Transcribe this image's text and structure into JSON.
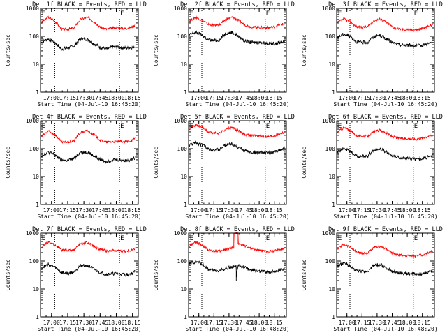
{
  "figure": {
    "background": "#ffffff",
    "axis_color": "#000000"
  },
  "chart_data": {
    "type": "line",
    "y_scale": "log",
    "ylim": [
      1,
      1000
    ],
    "yticks": [
      1,
      10,
      100,
      1000
    ],
    "ytick_labels": [
      "1",
      "10",
      "100",
      "1000"
    ],
    "xlim": [
      16.83,
      18.45
    ],
    "series_colors": {
      "events": "#000000",
      "lld": "#ff0000"
    },
    "panels": [
      {
        "title": "Det 1f BLACK = Events, RED = LLD",
        "ylabel": "Counts/sec",
        "xlabel": "Start Time (04-Jul-10 16:45:20)",
        "xticks": [
          17.0,
          17.25,
          17.5,
          17.75,
          18.0,
          18.25
        ],
        "xtick_labels": [
          "17:00",
          "17:15",
          "17:30",
          "17:45",
          "18:00",
          "18:15"
        ],
        "markers": [
          {
            "label": "E",
            "x": 16.84
          },
          {
            "label": "E",
            "x": 18.05
          }
        ],
        "dotted_lines": [
          17.05,
          18.05
        ],
        "xlim": [
          16.83,
          18.34
        ],
        "events": {
          "x": [
            16.84,
            16.95,
            17.05,
            17.15,
            17.25,
            17.35,
            17.45,
            17.55,
            17.65,
            17.75,
            17.85,
            17.95,
            18.05,
            18.15,
            18.25,
            18.3
          ],
          "y": [
            60,
            80,
            60,
            35,
            38,
            45,
            80,
            80,
            55,
            40,
            35,
            42,
            40,
            38,
            40,
            45
          ]
        },
        "lld": {
          "x": [
            16.84,
            16.95,
            17.05,
            17.15,
            17.25,
            17.35,
            17.45,
            17.55,
            17.65,
            17.75,
            17.85,
            17.95,
            18.05,
            18.15,
            18.25,
            18.3
          ],
          "y": [
            300,
            480,
            350,
            180,
            180,
            200,
            400,
            480,
            340,
            210,
            180,
            200,
            200,
            190,
            220,
            270
          ]
        }
      },
      {
        "title": "Det 2f BLACK = Events, RED = LLD",
        "ylabel": "Counts/sec",
        "xlabel": "Start Time (04-Jul-10 16:45:20)",
        "xticks": [
          17.0,
          17.25,
          17.5,
          17.75,
          18.0,
          18.25
        ],
        "xtick_labels": [
          "17:00",
          "17:15",
          "17:30",
          "17:45",
          "18:00",
          "18:15"
        ],
        "markers": [
          {
            "label": "E",
            "x": 16.84
          },
          {
            "label": "E",
            "x": 18.1
          }
        ],
        "dotted_lines": [
          17.05,
          18.1
        ],
        "xlim": [
          16.83,
          18.45
        ],
        "events": {
          "x": [
            16.84,
            16.95,
            17.05,
            17.15,
            17.25,
            17.35,
            17.45,
            17.55,
            17.65,
            17.75,
            17.85,
            17.95,
            18.05,
            18.15,
            18.25,
            18.35,
            18.42
          ],
          "y": [
            110,
            140,
            110,
            75,
            70,
            75,
            130,
            140,
            100,
            70,
            60,
            60,
            60,
            55,
            55,
            60,
            65
          ]
        },
        "lld": {
          "x": [
            16.84,
            16.95,
            17.05,
            17.15,
            17.25,
            17.35,
            17.45,
            17.55,
            17.65,
            17.75,
            17.85,
            17.95,
            18.05,
            18.15,
            18.25,
            18.35,
            18.42
          ],
          "y": [
            350,
            480,
            380,
            270,
            250,
            260,
            400,
            480,
            380,
            260,
            220,
            210,
            210,
            200,
            220,
            260,
            280
          ]
        }
      },
      {
        "title": "Det 3f BLACK = Events, RED = LLD",
        "ylabel": "Counts/sec",
        "xlabel": "Start Time (04-Jul-10 16:45:20)",
        "xticks": [
          17.0,
          17.25,
          17.5,
          17.75,
          18.0,
          18.25
        ],
        "xtick_labels": [
          "17:00",
          "17:15",
          "17:30",
          "17:45",
          "18:00",
          "18:15"
        ],
        "markers": [
          {
            "label": "E",
            "x": 16.84
          },
          {
            "label": "E",
            "x": 18.1
          }
        ],
        "dotted_lines": [
          17.05,
          18.1
        ],
        "xlim": [
          16.83,
          18.45
        ],
        "events": {
          "x": [
            16.84,
            16.95,
            17.05,
            17.15,
            17.25,
            17.35,
            17.45,
            17.55,
            17.65,
            17.75,
            17.85,
            17.95,
            18.05,
            18.15,
            18.25,
            18.35,
            18.42
          ],
          "y": [
            90,
            120,
            100,
            65,
            60,
            60,
            100,
            110,
            80,
            60,
            50,
            48,
            48,
            45,
            48,
            55,
            60
          ]
        },
        "lld": {
          "x": [
            16.84,
            16.95,
            17.05,
            17.15,
            17.25,
            17.35,
            17.45,
            17.55,
            17.65,
            17.75,
            17.85,
            17.95,
            18.05,
            18.15,
            18.25,
            18.35,
            18.42
          ],
          "y": [
            300,
            420,
            340,
            220,
            210,
            220,
            360,
            420,
            320,
            220,
            180,
            175,
            175,
            170,
            190,
            230,
            260
          ]
        }
      },
      {
        "title": "Det 4f BLACK = Events, RED = LLD",
        "ylabel": "Counts/sec",
        "xlabel": "Start Time (04-Jul-10 16:45:20)",
        "xticks": [
          17.0,
          17.25,
          17.5,
          17.75,
          18.0,
          18.25
        ],
        "xtick_labels": [
          "17:00",
          "17:15",
          "17:30",
          "17:45",
          "18:00",
          "18:15"
        ],
        "markers": [
          {
            "label": "E",
            "x": 16.84
          },
          {
            "label": "E",
            "x": 18.05
          }
        ],
        "dotted_lines": [
          17.05,
          18.05
        ],
        "xlim": [
          16.83,
          18.34
        ],
        "events": {
          "x": [
            16.84,
            16.95,
            17.05,
            17.15,
            17.25,
            17.35,
            17.45,
            17.55,
            17.65,
            17.75,
            17.85,
            17.95,
            18.05,
            18.15,
            18.25,
            18.3
          ],
          "y": [
            55,
            75,
            60,
            38,
            38,
            45,
            75,
            75,
            55,
            40,
            35,
            40,
            40,
            38,
            40,
            50
          ]
        },
        "lld": {
          "x": [
            16.84,
            16.95,
            17.05,
            17.15,
            17.25,
            17.35,
            17.45,
            17.55,
            17.65,
            17.75,
            17.85,
            17.95,
            18.05,
            18.15,
            18.25,
            18.3
          ],
          "y": [
            260,
            420,
            320,
            170,
            170,
            190,
            380,
            440,
            320,
            200,
            170,
            180,
            180,
            175,
            200,
            250
          ]
        }
      },
      {
        "title": "Det 5f BLACK = Events, RED = LLD",
        "ylabel": "Counts/sec",
        "xlabel": "Start Time (04-Jul-10 16:45:20)",
        "xticks": [
          17.0,
          17.25,
          17.5,
          17.75,
          18.0,
          18.25
        ],
        "xtick_labels": [
          "17:00",
          "17:15",
          "17:30",
          "17:45",
          "18:00",
          "18:15"
        ],
        "markers": [
          {
            "label": "E",
            "x": 16.84
          },
          {
            "label": "E",
            "x": 18.1
          }
        ],
        "dotted_lines": [
          17.05,
          18.1
        ],
        "xlim": [
          16.83,
          18.45
        ],
        "events": {
          "x": [
            16.84,
            16.95,
            17.05,
            17.15,
            17.25,
            17.35,
            17.45,
            17.55,
            17.65,
            17.75,
            17.85,
            17.95,
            18.05,
            18.15,
            18.25,
            18.35,
            18.42
          ],
          "y": [
            130,
            160,
            140,
            100,
            90,
            95,
            140,
            150,
            110,
            85,
            75,
            75,
            72,
            70,
            75,
            90,
            110
          ]
        },
        "lld": {
          "x": [
            16.84,
            16.95,
            17.05,
            17.15,
            17.25,
            17.35,
            17.45,
            17.55,
            17.65,
            17.75,
            17.85,
            17.95,
            18.05,
            18.15,
            18.25,
            18.35,
            18.42
          ],
          "y": [
            520,
            700,
            600,
            400,
            360,
            360,
            500,
            560,
            440,
            330,
            300,
            290,
            280,
            270,
            290,
            350,
            400
          ]
        }
      },
      {
        "title": "Det 6f BLACK = Events, RED = LLD",
        "ylabel": "Counts/sec",
        "xlabel": "Start Time (04-Jul-10 16:45:20)",
        "xticks": [
          17.0,
          17.25,
          17.5,
          17.75,
          18.0,
          18.25
        ],
        "xtick_labels": [
          "17:00",
          "17:15",
          "17:30",
          "17:45",
          "18:00",
          "18:15"
        ],
        "markers": [
          {
            "label": "E",
            "x": 16.84
          },
          {
            "label": "E",
            "x": 18.1
          }
        ],
        "dotted_lines": [
          17.05,
          18.1
        ],
        "xlim": [
          16.83,
          18.45
        ],
        "events": {
          "x": [
            16.84,
            16.95,
            17.05,
            17.15,
            17.25,
            17.35,
            17.45,
            17.55,
            17.65,
            17.75,
            17.85,
            17.95,
            18.05,
            18.15,
            18.25,
            18.35,
            18.42
          ],
          "y": [
            80,
            100,
            80,
            55,
            52,
            55,
            90,
            100,
            75,
            55,
            48,
            45,
            45,
            42,
            45,
            50,
            55
          ]
        },
        "lld": {
          "x": [
            16.84,
            16.95,
            17.05,
            17.15,
            17.25,
            17.35,
            17.45,
            17.55,
            17.65,
            17.75,
            17.85,
            17.95,
            18.05,
            18.15,
            18.25,
            18.35,
            18.42
          ],
          "y": [
            380,
            560,
            450,
            300,
            280,
            280,
            400,
            460,
            360,
            270,
            240,
            230,
            230,
            220,
            240,
            280,
            310
          ]
        }
      },
      {
        "title": "Det 7f BLACK = Events, RED = LLD",
        "ylabel": "Counts/sec",
        "xlabel": "Start Time (04-Jul-10 16:45:20)",
        "xticks": [
          17.0,
          17.25,
          17.5,
          17.75,
          18.0,
          18.25
        ],
        "xtick_labels": [
          "17:00",
          "17:15",
          "17:30",
          "17:45",
          "18:00",
          "18:15"
        ],
        "markers": [
          {
            "label": "E",
            "x": 16.84
          },
          {
            "label": "E",
            "x": 18.05
          }
        ],
        "dotted_lines": [
          17.05,
          18.05
        ],
        "xlim": [
          16.83,
          18.34
        ],
        "events": {
          "x": [
            16.84,
            16.95,
            17.05,
            17.15,
            17.25,
            17.35,
            17.45,
            17.55,
            17.65,
            17.75,
            17.85,
            17.95,
            18.05,
            18.15,
            18.25,
            18.3
          ],
          "y": [
            55,
            75,
            60,
            38,
            36,
            40,
            70,
            70,
            52,
            38,
            33,
            35,
            35,
            32,
            36,
            45
          ]
        },
        "lld": {
          "x": [
            16.84,
            16.95,
            17.05,
            17.15,
            17.25,
            17.35,
            17.45,
            17.55,
            17.65,
            17.75,
            17.85,
            17.95,
            18.05,
            18.15,
            18.25,
            18.3
          ],
          "y": [
            300,
            480,
            380,
            250,
            240,
            250,
            420,
            460,
            340,
            260,
            230,
            240,
            230,
            220,
            250,
            300
          ]
        }
      },
      {
        "title": "Det 8f BLACK = Events, RED = LLD",
        "ylabel": "Counts/sec",
        "xlabel": "Start Time (04-Jul-10 16:48:20)",
        "xticks": [
          17.0,
          17.25,
          17.5,
          17.75,
          18.0,
          18.25
        ],
        "xtick_labels": [
          "17:00",
          "17:15",
          "17:30",
          "17:45",
          "18:00",
          "18:15"
        ],
        "markers": [
          {
            "label": "E",
            "x": 16.84
          },
          {
            "label": "E",
            "x": 18.1
          }
        ],
        "dotted_lines": [
          17.05,
          18.1
        ],
        "xlim": [
          16.83,
          18.45
        ],
        "events": {
          "x": [
            16.84,
            16.95,
            17.05,
            17.15,
            17.25,
            17.35,
            17.45,
            17.55,
            17.62,
            17.62,
            17.65,
            17.75,
            17.85,
            17.95,
            18.05,
            18.15,
            18.25,
            18.35,
            18.42
          ],
          "y": [
            75,
            95,
            80,
            50,
            45,
            45,
            55,
            60,
            60,
            20,
            70,
            60,
            48,
            45,
            42,
            40,
            42,
            48,
            55
          ]
        },
        "lld": {
          "x": [
            16.84,
            16.95,
            17.05,
            17.15,
            17.25,
            17.35,
            17.45,
            17.55,
            17.58,
            17.58,
            17.65,
            17.65,
            17.75,
            17.85,
            17.95,
            18.05,
            18.15,
            18.25,
            18.35,
            18.42
          ],
          "y": [
            320,
            480,
            380,
            250,
            230,
            230,
            260,
            300,
            300,
            1000,
            1000,
            400,
            360,
            290,
            250,
            230,
            220,
            230,
            260,
            290
          ]
        }
      },
      {
        "title": "Det 9f BLACK = Events, RED = LLD",
        "ylabel": "Counts/sec",
        "xlabel": "Start Time (04-Jul-10 16:48:20)",
        "xticks": [
          17.0,
          17.25,
          17.5,
          17.75,
          18.0,
          18.25
        ],
        "xtick_labels": [
          "17:00",
          "17:15",
          "17:30",
          "17:45",
          "18:00",
          "18:15"
        ],
        "markers": [
          {
            "label": "E",
            "x": 16.84
          },
          {
            "label": "E",
            "x": 18.1
          }
        ],
        "dotted_lines": [
          17.05,
          18.1
        ],
        "xlim": [
          16.83,
          18.45
        ],
        "events": {
          "x": [
            16.84,
            16.95,
            17.05,
            17.15,
            17.25,
            17.35,
            17.45,
            17.55,
            17.65,
            17.75,
            17.85,
            17.95,
            18.05,
            18.15,
            18.25,
            18.35,
            18.42
          ],
          "y": [
            65,
            85,
            70,
            45,
            42,
            42,
            70,
            75,
            58,
            42,
            38,
            36,
            35,
            33,
            35,
            40,
            45
          ]
        },
        "lld": {
          "x": [
            16.84,
            16.95,
            17.05,
            17.15,
            17.25,
            17.35,
            17.45,
            17.55,
            17.65,
            17.75,
            17.85,
            17.95,
            18.05,
            18.15,
            18.25,
            18.35,
            18.42
          ],
          "y": [
            260,
            400,
            320,
            210,
            190,
            190,
            300,
            340,
            260,
            190,
            165,
            160,
            160,
            150,
            165,
            200,
            230
          ]
        }
      }
    ]
  }
}
